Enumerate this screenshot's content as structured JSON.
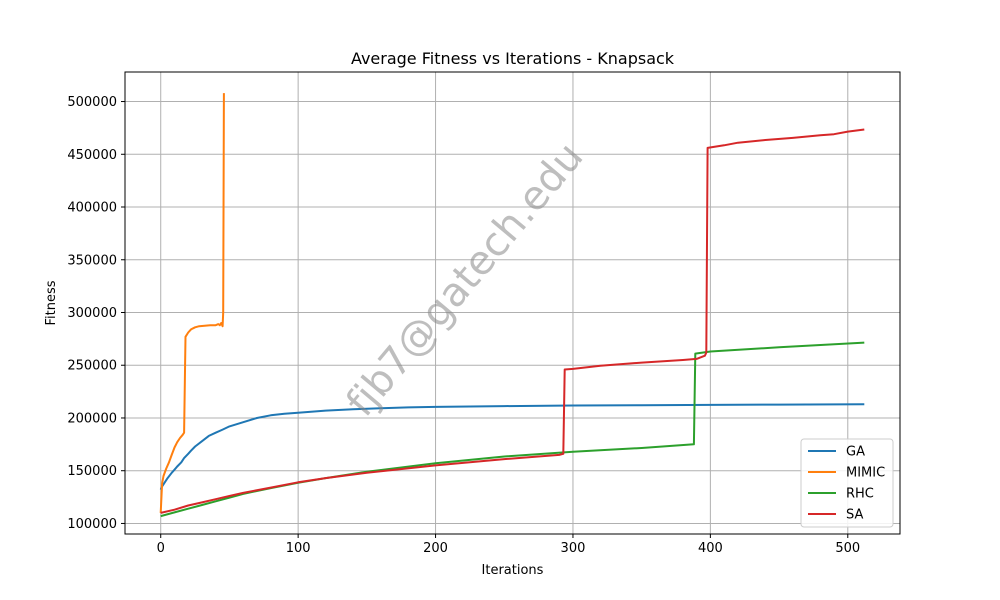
{
  "chart_data": {
    "type": "line",
    "title": "Average Fitness vs Iterations - Knapsack",
    "xlabel": "Iterations",
    "ylabel": "Fitness",
    "xlim": [
      -26,
      538
    ],
    "ylim": [
      90000,
      528000
    ],
    "xticks": [
      0,
      100,
      200,
      300,
      400,
      500
    ],
    "yticks": [
      100000,
      150000,
      200000,
      250000,
      300000,
      350000,
      400000,
      450000,
      500000
    ],
    "grid": true,
    "legend_position": "lower-right",
    "watermark": "fjb7@gatech.edu",
    "series": [
      {
        "name": "GA",
        "color": "#1f77b4",
        "x": [
          0,
          1,
          3,
          5,
          8,
          10,
          12,
          15,
          17,
          20,
          22,
          25,
          30,
          35,
          40,
          45,
          50,
          60,
          70,
          80,
          90,
          100,
          120,
          140,
          160,
          180,
          200,
          250,
          300,
          350,
          400,
          450,
          512
        ],
        "y": [
          132000,
          135000,
          139000,
          143000,
          148000,
          151000,
          154000,
          158000,
          162000,
          166000,
          169000,
          173000,
          178000,
          183000,
          186000,
          189000,
          192000,
          196000,
          200000,
          202500,
          204000,
          205000,
          207000,
          208300,
          209300,
          210000,
          210500,
          211300,
          211800,
          212100,
          212400,
          212700,
          213000
        ]
      },
      {
        "name": "MIMIC",
        "color": "#ff7f0e",
        "x": [
          0,
          1,
          2,
          4,
          6,
          8,
          10,
          12,
          14,
          16,
          17,
          18,
          20,
          22,
          25,
          28,
          32,
          36,
          40,
          42,
          43,
          44,
          45,
          45.5,
          46
        ],
        "y": [
          110000,
          138000,
          145000,
          152000,
          158000,
          165000,
          172000,
          177000,
          181000,
          184000,
          186000,
          277000,
          281000,
          284000,
          286000,
          287000,
          287500,
          288000,
          288000,
          289000,
          288000,
          290000,
          287000,
          300000,
          508000
        ]
      },
      {
        "name": "RHC",
        "color": "#2ca02c",
        "x": [
          0,
          10,
          20,
          30,
          40,
          50,
          60,
          80,
          100,
          120,
          150,
          200,
          250,
          300,
          350,
          388,
          389,
          400,
          450,
          512
        ],
        "y": [
          107000,
          110500,
          114000,
          117500,
          121000,
          124500,
          128000,
          133500,
          138500,
          143000,
          149000,
          157000,
          163500,
          168000,
          171500,
          175000,
          261000,
          263000,
          267000,
          271500
        ]
      },
      {
        "name": "SA",
        "color": "#d62728",
        "x": [
          0,
          10,
          20,
          30,
          40,
          50,
          60,
          80,
          100,
          120,
          150,
          200,
          250,
          290,
          293,
          294,
          300,
          320,
          350,
          380,
          390,
          396,
          397,
          398,
          410,
          420,
          440,
          460,
          480,
          490,
          500,
          512
        ],
        "y": [
          110000,
          113000,
          117000,
          120000,
          123000,
          126000,
          129000,
          134000,
          139000,
          143000,
          148000,
          155000,
          161000,
          165000,
          166000,
          246000,
          246500,
          249500,
          252500,
          255000,
          256000,
          259000,
          262000,
          456000,
          458500,
          461000,
          463500,
          465500,
          468000,
          469000,
          471500,
          473500
        ]
      }
    ]
  }
}
